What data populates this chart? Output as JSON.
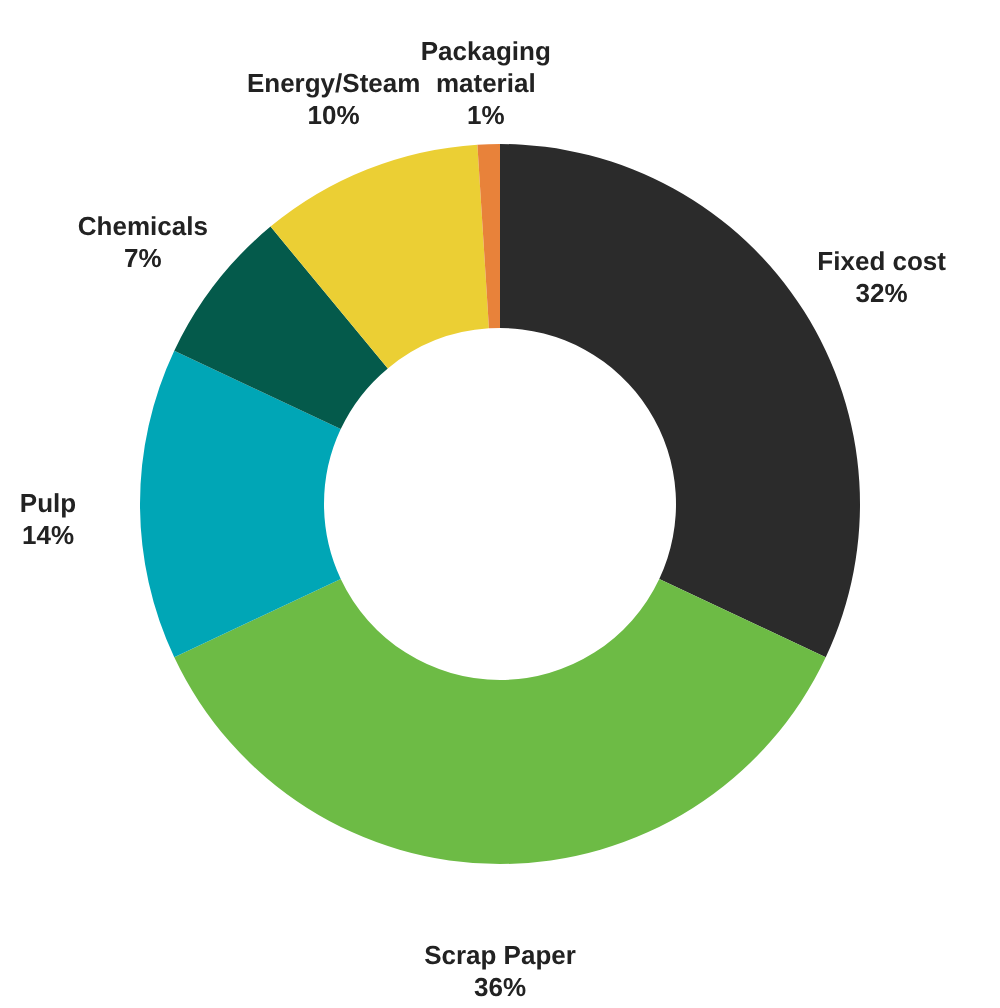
{
  "chart_data": {
    "type": "donut",
    "categories": [
      "Fixed cost",
      "Scrap Paper",
      "Pulp",
      "Chemicals",
      "Energy/Steam",
      "Packaging material"
    ],
    "values": [
      32,
      36,
      14,
      7,
      10,
      1
    ],
    "colors": [
      "#2b2b2b",
      "#6dbb45",
      "#00a6b6",
      "#045a4b",
      "#ebcf34",
      "#e8823a"
    ],
    "value_labels": [
      "32%",
      "36%",
      "14%",
      "7%",
      "10%",
      "1%"
    ]
  }
}
